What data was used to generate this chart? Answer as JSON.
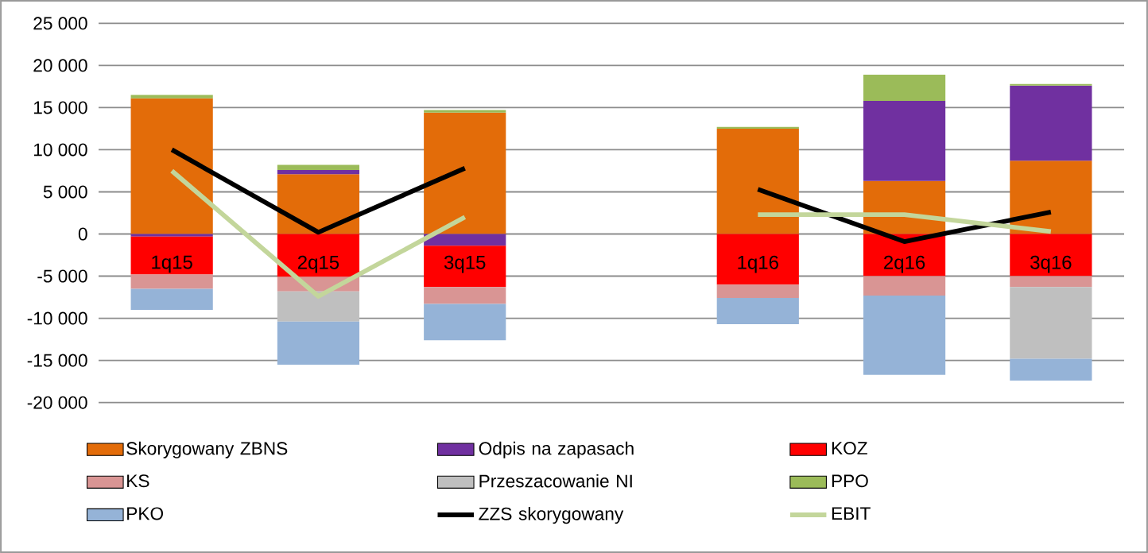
{
  "chart_data": {
    "type": "bar",
    "stacked": true,
    "categories": [
      "1q15",
      "2q15",
      "3q15",
      null,
      "1q16",
      "2q16",
      "3q16"
    ],
    "series": [
      {
        "name": "Skorygowany ZBNS",
        "color": "#e36c09",
        "values": [
          16100,
          7100,
          14400,
          null,
          12500,
          6300,
          8700
        ]
      },
      {
        "name": "Odpis na zapasach",
        "color": "#7030a0",
        "values": [
          -300,
          500,
          -1400,
          null,
          null,
          9500,
          8900
        ]
      },
      {
        "name": "KOZ",
        "color": "#ff0000",
        "values": [
          -4500,
          -5100,
          -4900,
          null,
          -6000,
          -5000,
          -5000
        ]
      },
      {
        "name": "KS",
        "color": "#d99594",
        "values": [
          -1700,
          -1700,
          -2000,
          null,
          -1600,
          -2300,
          -1300
        ]
      },
      {
        "name": "Przeszacowanie NI",
        "color": "#bfbfbf",
        "values": [
          null,
          -3600,
          null,
          null,
          null,
          null,
          -8500
        ]
      },
      {
        "name": "PPO",
        "color": "#9bbb59",
        "values": [
          400,
          600,
          300,
          null,
          200,
          3100,
          200
        ]
      },
      {
        "name": "PKO",
        "color": "#95b3d7",
        "values": [
          -2500,
          -5100,
          -4300,
          null,
          -3100,
          -9400,
          -2600
        ]
      },
      {
        "name": "ZZS skorygowany",
        "type": "line",
        "color": "#000000",
        "values": [
          10000,
          200,
          7800,
          null,
          5300,
          -900,
          2600
        ]
      },
      {
        "name": "EBIT",
        "type": "line",
        "color": "#c3d69b",
        "values": [
          7500,
          -7400,
          2000,
          null,
          2300,
          2300,
          300
        ]
      }
    ],
    "ylim": [
      -20000,
      25000
    ],
    "yticks": [
      {
        "value": -20000,
        "label": "-20 000"
      },
      {
        "value": -15000,
        "label": "-15 000"
      },
      {
        "value": -10000,
        "label": "-10 000"
      },
      {
        "value": -5000,
        "label": "-5 000"
      },
      0,
      {
        "value": 5000,
        "label": "5 000"
      },
      {
        "value": 10000,
        "label": "10 000"
      },
      {
        "value": 15000,
        "label": "15 000"
      },
      {
        "value": 20000,
        "label": "20 000"
      },
      {
        "value": 25000,
        "label": "25 000"
      }
    ],
    "grid": "y",
    "legend": "bottom",
    "marker": "none",
    "line_style": "solid"
  }
}
